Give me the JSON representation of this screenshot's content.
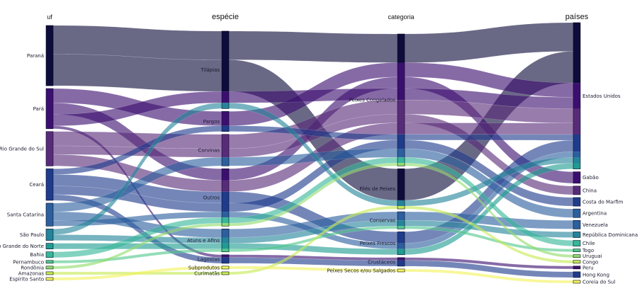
{
  "chart_data": {
    "type": "sankey",
    "title": "",
    "dimensions": [
      {
        "key": "uf",
        "title": "uf",
        "nodes": [
          "Paraná",
          "Pará",
          "Rio Grande do Sul",
          "Ceará",
          "Santa Catarina",
          "São Paulo",
          "Rio Grande do Norte",
          "Bahia",
          "Pernambuco",
          "Rondônia",
          "Amazonas",
          "Espírito Santo"
        ]
      },
      {
        "key": "especie",
        "title": "espécie",
        "nodes": [
          "Tilápias",
          "Pargos",
          "Corvinas",
          "Outros",
          "Atuns e Afins",
          "Lagostas",
          "Subprodutos",
          "Curimatãs"
        ]
      },
      {
        "key": "categoria",
        "title": "categoria",
        "nodes": [
          "Peixes Congelados",
          "Filés de Peixes",
          "Conservas",
          "Peixes Frescos",
          "Crustáceos",
          "Peixes Secos e/ou Salgados"
        ]
      },
      {
        "key": "paises",
        "title": "países",
        "nodes": [
          "Estados Unidos",
          "Gabão",
          "China",
          "Costa do Marfim",
          "Argentina",
          "Venezuela",
          "República Dominicana",
          "Chile",
          "Togo",
          "Uruguai",
          "Congo",
          "Peru",
          "Hong Kong",
          "Coreia do Sul"
        ]
      }
    ],
    "flows": [
      {
        "path": [
          "Paraná",
          "Tilápias",
          "Peixes Congelados",
          "Estados Unidos"
        ],
        "value": 10
      },
      {
        "path": [
          "Paraná",
          "Tilápias",
          "Filés de Peixes",
          "Estados Unidos"
        ],
        "value": 11
      },
      {
        "path": [
          "Pará",
          "Pargos",
          "Peixes Congelados",
          "Estados Unidos"
        ],
        "value": 5
      },
      {
        "path": [
          "Pará",
          "Outros",
          "Peixes Congelados",
          "Gabão"
        ],
        "value": 4
      },
      {
        "path": [
          "Pará",
          "Tilápias",
          "Peixes Congelados",
          "Estados Unidos"
        ],
        "value": 4
      },
      {
        "path": [
          "Pará",
          "Lagostas",
          "Crustáceos",
          "Peru"
        ],
        "value": 1
      },
      {
        "path": [
          "Rio Grande do Sul",
          "Corvinas",
          "Peixes Congelados",
          "Estados Unidos"
        ],
        "value": 5
      },
      {
        "path": [
          "Rio Grande do Sul",
          "Corvinas",
          "Peixes Congelados",
          "China"
        ],
        "value": 3
      },
      {
        "path": [
          "Rio Grande do Sul",
          "Outros",
          "Peixes Congelados",
          "Estados Unidos"
        ],
        "value": 4
      },
      {
        "path": [
          "Ceará",
          "Pargos",
          "Peixes Congelados",
          "Estados Unidos"
        ],
        "value": 2
      },
      {
        "path": [
          "Ceará",
          "Outros",
          "Peixes Frescos",
          "Estados Unidos"
        ],
        "value": 4
      },
      {
        "path": [
          "Ceará",
          "Outros",
          "Peixes Congelados",
          "Costa do Marfim"
        ],
        "value": 3
      },
      {
        "path": [
          "Ceará",
          "Lagostas",
          "Crustáceos",
          "Hong Kong"
        ],
        "value": 2
      },
      {
        "path": [
          "Santa Catarina",
          "Corvinas",
          "Peixes Congelados",
          "Argentina"
        ],
        "value": 3
      },
      {
        "path": [
          "Santa Catarina",
          "Atuns e Afins",
          "Conservas",
          "Venezuela"
        ],
        "value": 3
      },
      {
        "path": [
          "Santa Catarina",
          "Outros",
          "Peixes Frescos",
          "Estados Unidos"
        ],
        "value": 2
      },
      {
        "path": [
          "São Paulo",
          "Tilápias",
          "Filés de Peixes",
          "Estados Unidos"
        ],
        "value": 2
      },
      {
        "path": [
          "São Paulo",
          "Atuns e Afins",
          "Conservas",
          "República Dominicana"
        ],
        "value": 2
      },
      {
        "path": [
          "Rio Grande do Norte",
          "Atuns e Afins",
          "Peixes Frescos",
          "Estados Unidos"
        ],
        "value": 2
      },
      {
        "path": [
          "Bahia",
          "Outros",
          "Peixes Congelados",
          "Chile"
        ],
        "value": 2
      },
      {
        "path": [
          "Pernambuco",
          "Atuns e Afins",
          "Conservas",
          "Togo"
        ],
        "value": 1
      },
      {
        "path": [
          "Rondônia",
          "Outros",
          "Peixes Congelados",
          "Uruguai"
        ],
        "value": 1
      },
      {
        "path": [
          "Amazonas",
          "Curimatãs",
          "Filés de Peixes",
          "Congo"
        ],
        "value": 1
      },
      {
        "path": [
          "Espírito Santo",
          "Subprodutos",
          "Peixes Secos e/ou Salgados",
          "Coreia do Sul"
        ],
        "value": 1
      }
    ],
    "colors": [
      "#0d0c3a",
      "#3b0f70",
      "#582b79",
      "#1f3b8c",
      "#2b5f9e",
      "#24849a",
      "#1f9c92",
      "#35b79a",
      "#50c88c",
      "#8fdc6a",
      "#c6ea52",
      "#f2f25a"
    ]
  }
}
